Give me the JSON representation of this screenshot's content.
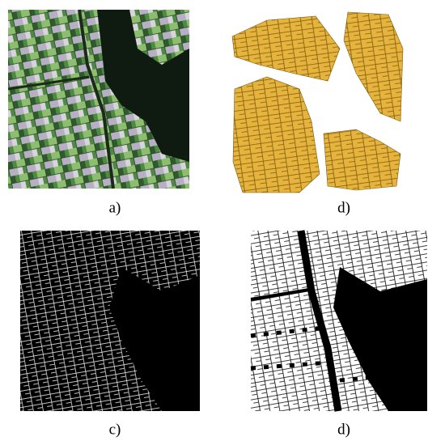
{
  "panels": [
    {
      "caption": "a)"
    },
    {
      "caption": "d)"
    },
    {
      "caption": "c)"
    },
    {
      "caption": "d)"
    }
  ]
}
